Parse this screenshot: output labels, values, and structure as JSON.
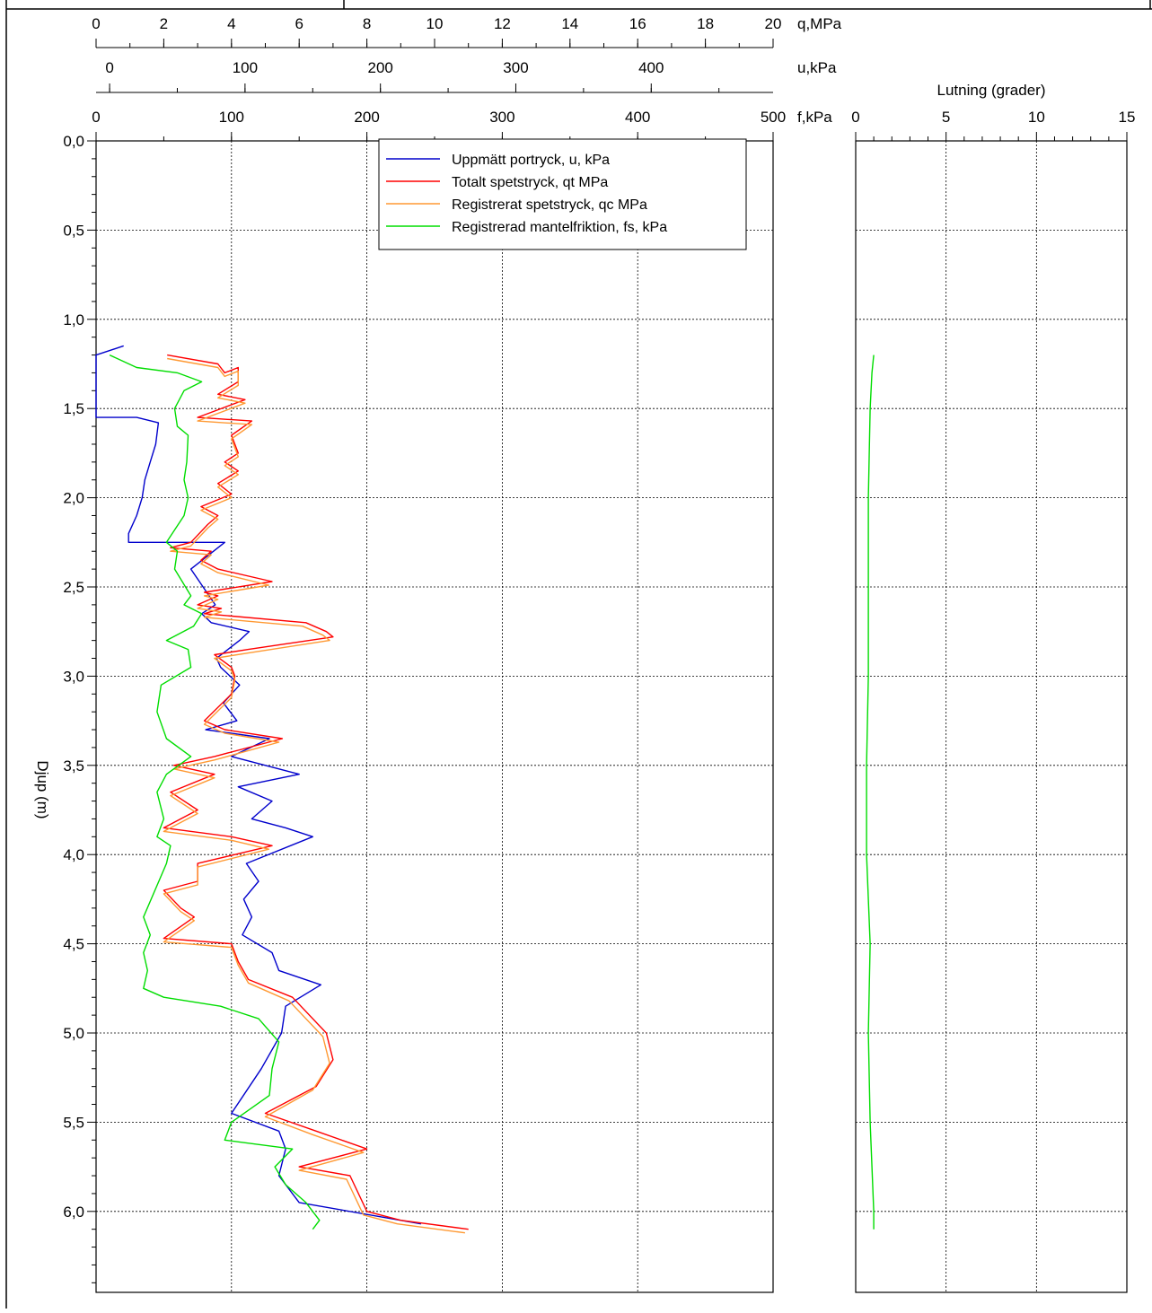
{
  "chart_data": [
    {
      "type": "line",
      "panel": "main",
      "ylabel": "Djup  (m)",
      "y_ticks": [
        "0,0",
        "0,5",
        "1,0",
        "1,5",
        "2,0",
        "2,5",
        "3,0",
        "3,5",
        "4,0",
        "4,5",
        "5,0",
        "5,5",
        "6,0"
      ],
      "y_range": [
        0,
        6.5
      ],
      "grid": true,
      "axes": [
        {
          "unit_label": "q,MPa",
          "range": [
            0,
            20
          ],
          "ticks": [
            "0",
            "2",
            "4",
            "6",
            "8",
            "10",
            "12",
            "14",
            "16",
            "18",
            "20"
          ]
        },
        {
          "unit_label": "u,kPa",
          "range": [
            -10,
            490
          ],
          "ticks": [
            "0",
            "100",
            "200",
            "300",
            "400"
          ]
        },
        {
          "unit_label": "f,kPa",
          "range": [
            0,
            500
          ],
          "ticks": [
            "0",
            "100",
            "200",
            "300",
            "400",
            "500"
          ]
        }
      ],
      "legend_position": "top-center",
      "series": [
        {
          "name": "Uppmätt portryck, u, kPa",
          "axis": "u",
          "color": "#0000cc",
          "points": [
            [
              -10,
              1.2
            ],
            [
              10,
              1.15
            ],
            [
              -10,
              1.2
            ],
            [
              -10,
              1.55
            ],
            [
              20,
              1.55
            ],
            [
              36,
              1.58
            ],
            [
              34,
              1.7
            ],
            [
              30,
              1.8
            ],
            [
              26,
              1.9
            ],
            [
              24,
              2.0
            ],
            [
              20,
              2.1
            ],
            [
              14,
              2.2
            ],
            [
              14,
              2.25
            ],
            [
              85,
              2.25
            ],
            [
              60,
              2.4
            ],
            [
              78,
              2.6
            ],
            [
              68,
              2.65
            ],
            [
              75,
              2.7
            ],
            [
              103,
              2.75
            ],
            [
              96,
              2.8
            ],
            [
              79,
              2.9
            ],
            [
              82,
              2.95
            ],
            [
              96,
              3.05
            ],
            [
              84,
              3.15
            ],
            [
              94,
              3.25
            ],
            [
              71,
              3.3
            ],
            [
              118,
              3.35
            ],
            [
              90,
              3.45
            ],
            [
              140,
              3.55
            ],
            [
              95,
              3.62
            ],
            [
              120,
              3.7
            ],
            [
              105,
              3.8
            ],
            [
              130,
              3.85
            ],
            [
              150,
              3.9
            ],
            [
              101,
              4.05
            ],
            [
              110,
              4.15
            ],
            [
              99,
              4.25
            ],
            [
              105,
              4.35
            ],
            [
              98,
              4.45
            ],
            [
              120,
              4.55
            ],
            [
              125,
              4.65
            ],
            [
              156,
              4.73
            ],
            [
              130,
              4.85
            ],
            [
              127,
              5.0
            ],
            [
              112,
              5.2
            ],
            [
              90,
              5.45
            ],
            [
              125,
              5.55
            ],
            [
              130,
              5.65
            ],
            [
              125,
              5.8
            ],
            [
              140,
              5.95
            ],
            [
              230,
              6.07
            ]
          ]
        },
        {
          "name": "Totalt spetstryck, qt  MPa",
          "axis": "q",
          "color": "#ff0000",
          "points": [
            [
              2.1,
              1.2
            ],
            [
              3.6,
              1.25
            ],
            [
              3.8,
              1.3
            ],
            [
              4.2,
              1.27
            ],
            [
              4.2,
              1.35
            ],
            [
              3.6,
              1.42
            ],
            [
              4.4,
              1.45
            ],
            [
              3.0,
              1.55
            ],
            [
              4.6,
              1.57
            ],
            [
              4.0,
              1.65
            ],
            [
              4.2,
              1.75
            ],
            [
              3.8,
              1.8
            ],
            [
              4.2,
              1.85
            ],
            [
              3.6,
              1.92
            ],
            [
              4.0,
              1.98
            ],
            [
              3.1,
              2.05
            ],
            [
              3.6,
              2.1
            ],
            [
              3.3,
              2.15
            ],
            [
              2.8,
              2.25
            ],
            [
              2.2,
              2.28
            ],
            [
              3.4,
              2.3
            ],
            [
              3.1,
              2.35
            ],
            [
              3.6,
              2.4
            ],
            [
              5.2,
              2.47
            ],
            [
              3.2,
              2.53
            ],
            [
              3.6,
              2.55
            ],
            [
              3.0,
              2.6
            ],
            [
              3.7,
              2.62
            ],
            [
              3.2,
              2.65
            ],
            [
              6.2,
              2.7
            ],
            [
              6.8,
              2.75
            ],
            [
              7.0,
              2.78
            ],
            [
              4.5,
              2.85
            ],
            [
              3.5,
              2.88
            ],
            [
              4.0,
              2.95
            ],
            [
              4.1,
              3.0
            ],
            [
              4.0,
              3.1
            ],
            [
              3.2,
              3.25
            ],
            [
              3.8,
              3.3
            ],
            [
              5.5,
              3.35
            ],
            [
              3.5,
              3.45
            ],
            [
              2.3,
              3.5
            ],
            [
              3.5,
              3.55
            ],
            [
              2.2,
              3.65
            ],
            [
              3.0,
              3.75
            ],
            [
              2.0,
              3.85
            ],
            [
              4.0,
              3.9
            ],
            [
              5.2,
              3.95
            ],
            [
              3.0,
              4.05
            ],
            [
              3.0,
              4.15
            ],
            [
              2.0,
              4.2
            ],
            [
              2.5,
              4.3
            ],
            [
              2.9,
              4.35
            ],
            [
              2.0,
              4.47
            ],
            [
              4.0,
              4.5
            ],
            [
              4.2,
              4.6
            ],
            [
              4.5,
              4.7
            ],
            [
              5.8,
              4.8
            ],
            [
              6.8,
              5.0
            ],
            [
              7.0,
              5.15
            ],
            [
              6.5,
              5.3
            ],
            [
              5.0,
              5.45
            ],
            [
              6.5,
              5.55
            ],
            [
              8.0,
              5.65
            ],
            [
              6.0,
              5.75
            ],
            [
              7.5,
              5.8
            ],
            [
              8.0,
              6.0
            ],
            [
              9.0,
              6.05
            ],
            [
              11.0,
              6.1
            ]
          ]
        },
        {
          "name": "Registrerat spetstryck, qc  MPa",
          "axis": "q",
          "color": "#ff9933",
          "points": [
            [
              2.1,
              1.22
            ],
            [
              3.6,
              1.27
            ],
            [
              3.8,
              1.32
            ],
            [
              4.2,
              1.29
            ],
            [
              4.2,
              1.37
            ],
            [
              3.6,
              1.44
            ],
            [
              4.4,
              1.47
            ],
            [
              3.0,
              1.57
            ],
            [
              4.6,
              1.59
            ],
            [
              4.0,
              1.67
            ],
            [
              4.2,
              1.77
            ],
            [
              3.8,
              1.82
            ],
            [
              4.2,
              1.87
            ],
            [
              3.6,
              1.94
            ],
            [
              4.0,
              2.0
            ],
            [
              3.1,
              2.07
            ],
            [
              3.6,
              2.12
            ],
            [
              3.3,
              2.17
            ],
            [
              2.8,
              2.27
            ],
            [
              2.2,
              2.3
            ],
            [
              3.4,
              2.32
            ],
            [
              3.1,
              2.37
            ],
            [
              3.6,
              2.42
            ],
            [
              5.1,
              2.49
            ],
            [
              3.2,
              2.55
            ],
            [
              3.6,
              2.57
            ],
            [
              3.0,
              2.62
            ],
            [
              3.7,
              2.64
            ],
            [
              3.2,
              2.67
            ],
            [
              6.1,
              2.72
            ],
            [
              6.7,
              2.77
            ],
            [
              6.9,
              2.8
            ],
            [
              4.5,
              2.87
            ],
            [
              3.5,
              2.9
            ],
            [
              4.0,
              2.97
            ],
            [
              4.1,
              3.02
            ],
            [
              4.0,
              3.12
            ],
            [
              3.2,
              3.27
            ],
            [
              3.8,
              3.32
            ],
            [
              5.4,
              3.37
            ],
            [
              3.5,
              3.47
            ],
            [
              2.3,
              3.52
            ],
            [
              3.5,
              3.57
            ],
            [
              2.2,
              3.67
            ],
            [
              3.0,
              3.77
            ],
            [
              2.0,
              3.87
            ],
            [
              4.0,
              3.92
            ],
            [
              5.1,
              3.97
            ],
            [
              3.0,
              4.07
            ],
            [
              3.0,
              4.17
            ],
            [
              2.0,
              4.22
            ],
            [
              2.5,
              4.32
            ],
            [
              2.9,
              4.37
            ],
            [
              2.0,
              4.49
            ],
            [
              4.0,
              4.52
            ],
            [
              4.2,
              4.62
            ],
            [
              4.5,
              4.72
            ],
            [
              5.7,
              4.82
            ],
            [
              6.7,
              5.02
            ],
            [
              6.9,
              5.17
            ],
            [
              6.4,
              5.32
            ],
            [
              5.0,
              5.47
            ],
            [
              6.4,
              5.57
            ],
            [
              7.9,
              5.67
            ],
            [
              6.0,
              5.77
            ],
            [
              7.4,
              5.82
            ],
            [
              7.9,
              6.02
            ],
            [
              8.9,
              6.07
            ],
            [
              10.9,
              6.12
            ]
          ]
        },
        {
          "name": "Registrerad mantelfriktion, fs, kPa",
          "axis": "f",
          "color": "#00dd00",
          "points": [
            [
              10,
              1.2
            ],
            [
              30,
              1.27
            ],
            [
              60,
              1.3
            ],
            [
              78,
              1.35
            ],
            [
              65,
              1.4
            ],
            [
              58,
              1.5
            ],
            [
              60,
              1.6
            ],
            [
              68,
              1.65
            ],
            [
              67,
              1.8
            ],
            [
              65,
              1.9
            ],
            [
              68,
              2.0
            ],
            [
              65,
              2.1
            ],
            [
              52,
              2.25
            ],
            [
              60,
              2.3
            ],
            [
              58,
              2.4
            ],
            [
              70,
              2.55
            ],
            [
              65,
              2.6
            ],
            [
              78,
              2.65
            ],
            [
              72,
              2.72
            ],
            [
              52,
              2.8
            ],
            [
              68,
              2.85
            ],
            [
              70,
              2.95
            ],
            [
              48,
              3.05
            ],
            [
              45,
              3.2
            ],
            [
              52,
              3.35
            ],
            [
              70,
              3.45
            ],
            [
              52,
              3.55
            ],
            [
              45,
              3.65
            ],
            [
              50,
              3.8
            ],
            [
              45,
              3.9
            ],
            [
              55,
              3.95
            ],
            [
              52,
              4.05
            ],
            [
              35,
              4.35
            ],
            [
              40,
              4.45
            ],
            [
              35,
              4.55
            ],
            [
              38,
              4.65
            ],
            [
              35,
              4.75
            ],
            [
              50,
              4.8
            ],
            [
              92,
              4.85
            ],
            [
              120,
              4.92
            ],
            [
              135,
              5.05
            ],
            [
              130,
              5.2
            ],
            [
              128,
              5.35
            ],
            [
              100,
              5.5
            ],
            [
              95,
              5.6
            ],
            [
              145,
              5.65
            ],
            [
              132,
              5.75
            ],
            [
              140,
              5.85
            ],
            [
              155,
              5.95
            ],
            [
              165,
              6.05
            ],
            [
              160,
              6.1
            ]
          ]
        }
      ]
    },
    {
      "type": "line",
      "panel": "lutning",
      "title": "Lutning (grader)",
      "x_range": [
        0,
        15
      ],
      "x_ticks": [
        "0",
        "5",
        "10",
        "15"
      ],
      "y_range": [
        0,
        6.5
      ],
      "grid": true,
      "series": [
        {
          "color": "#00dd00",
          "points": [
            [
              1.0,
              1.2
            ],
            [
              0.9,
              1.3
            ],
            [
              0.8,
              1.5
            ],
            [
              0.7,
              2.0
            ],
            [
              0.7,
              2.5
            ],
            [
              0.7,
              3.0
            ],
            [
              0.6,
              3.5
            ],
            [
              0.6,
              4.0
            ],
            [
              0.8,
              4.5
            ],
            [
              0.7,
              5.0
            ],
            [
              0.8,
              5.5
            ],
            [
              1.0,
              6.0
            ],
            [
              1.0,
              6.1
            ]
          ]
        }
      ]
    }
  ]
}
